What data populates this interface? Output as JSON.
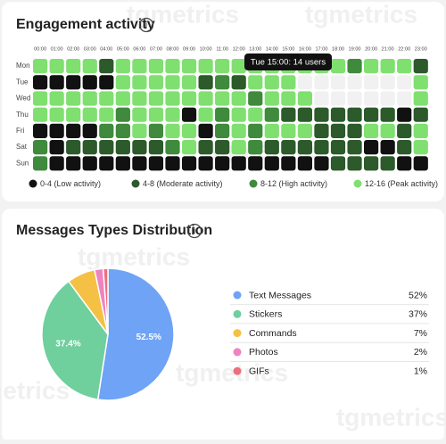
{
  "watermark": "tgmetrics",
  "chart_data": [
    {
      "type": "heatmap",
      "title": "Engagement activity",
      "x": [
        "00:00",
        "01:00",
        "02:00",
        "03:00",
        "04:00",
        "05:00",
        "06:00",
        "07:00",
        "08:00",
        "09:00",
        "10:00",
        "11:00",
        "12:00",
        "13:00",
        "14:00",
        "15:00",
        "16:00",
        "17:00",
        "18:00",
        "19:00",
        "20:00",
        "21:00",
        "22:00",
        "23:00"
      ],
      "y": [
        "Mon",
        "Tue",
        "Wed",
        "Thu",
        "Fri",
        "Sat",
        "Sun"
      ],
      "values": [
        [
          14,
          13,
          14,
          13,
          6,
          14,
          13,
          14,
          15,
          13,
          14,
          14,
          13,
          14,
          14,
          13,
          14,
          14,
          13,
          10,
          14,
          13,
          14,
          6
        ],
        [
          2,
          1,
          3,
          2,
          2,
          14,
          13,
          14,
          13,
          15,
          6,
          10,
          6,
          14,
          13,
          14,
          null,
          null,
          null,
          null,
          null,
          null,
          null,
          13
        ],
        [
          14,
          13,
          14,
          13,
          14,
          14,
          13,
          14,
          13,
          14,
          14,
          13,
          14,
          10,
          14,
          13,
          14,
          null,
          null,
          null,
          null,
          null,
          null,
          14
        ],
        [
          13,
          14,
          14,
          13,
          14,
          10,
          14,
          13,
          14,
          2,
          13,
          10,
          14,
          13,
          10,
          6,
          5,
          6,
          7,
          6,
          5,
          6,
          2,
          6
        ],
        [
          2,
          3,
          2,
          1,
          10,
          9,
          14,
          10,
          13,
          14,
          2,
          10,
          14,
          10,
          13,
          14,
          13,
          6,
          5,
          6,
          13,
          14,
          6,
          13
        ],
        [
          10,
          2,
          6,
          5,
          6,
          7,
          6,
          5,
          10,
          13,
          6,
          6,
          14,
          10,
          6,
          5,
          6,
          7,
          6,
          5,
          2,
          3,
          6,
          13
        ],
        [
          10,
          2,
          3,
          2,
          1,
          2,
          3,
          2,
          1,
          2,
          3,
          2,
          2,
          1,
          2,
          3,
          2,
          2,
          6,
          5,
          6,
          5,
          2,
          3
        ]
      ],
      "bins": [
        0,
        4,
        8,
        12,
        16
      ],
      "colors": [
        "#111111",
        "#2c5a2b",
        "#3f8a3c",
        "#7fe070"
      ],
      "legend": [
        "0-4 (Low activity)",
        "4-8 (Moderate activity)",
        "8-12 (High activity)",
        "12-16 (Peak activity)"
      ],
      "tooltip": "Tue 15:00: 14 users"
    },
    {
      "type": "pie",
      "title": "Messages Types Distribution",
      "categories": [
        "Text Messages",
        "Stickers",
        "Commands",
        "Photos",
        "GIFs"
      ],
      "values": [
        52.45,
        37.4,
        6.9,
        2.1,
        1.15
      ],
      "value_labels": [
        "52.5%",
        "37.4%",
        null,
        null,
        null
      ],
      "legend_value_labels": [
        "52%",
        "37%",
        "7%",
        "2%",
        "1%"
      ],
      "colors": [
        "#6ea3f6",
        "#6fcf9d",
        "#f4c145",
        "#ee83c1",
        "#ec6f7e"
      ]
    }
  ]
}
